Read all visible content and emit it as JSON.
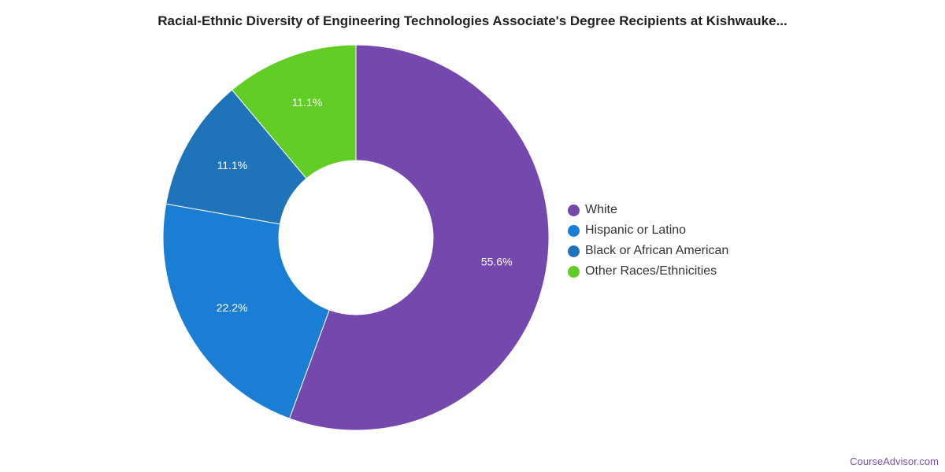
{
  "chart_data": {
    "type": "pie",
    "title": "Racial-Ethnic Diversity of Engineering Technologies Associate's Degree Recipients at Kishwauke...",
    "series": [
      {
        "name": "White",
        "value": 55.6,
        "label": "55.6%",
        "color": "#7548ae"
      },
      {
        "name": "Hispanic or Latino",
        "value": 22.2,
        "label": "22.2%",
        "color": "#1a7fd4"
      },
      {
        "name": "Black or African American",
        "value": 11.1,
        "label": "11.1%",
        "color": "#1f73b9"
      },
      {
        "name": "Other Races/Ethnicities",
        "value": 11.1,
        "label": "11.1%",
        "color": "#62cd25"
      }
    ],
    "legend_position": "right"
  },
  "watermark": "CourseAdvisor.com"
}
